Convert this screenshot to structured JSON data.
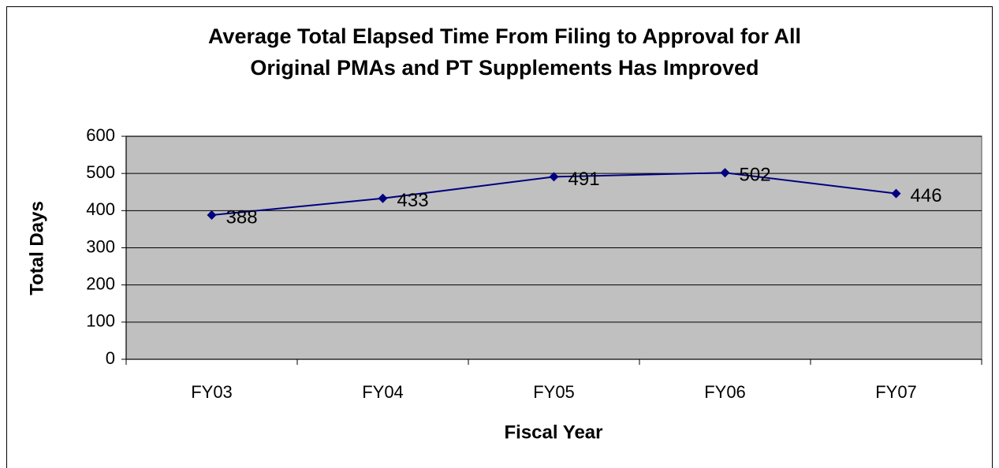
{
  "chart_data": {
    "type": "line",
    "title": [
      "Average Total Elapsed Time From Filing to Approval for All",
      "Original PMAs and PT Supplements Has Improved"
    ],
    "x_label": "Fiscal Year",
    "y_label": "Total Days",
    "categories": [
      "FY03",
      "FY04",
      "FY05",
      "FY06",
      "FY07"
    ],
    "series": [
      {
        "name": "Total Days",
        "color": "#000080",
        "values": [
          388,
          433,
          491,
          502,
          446
        ]
      }
    ],
    "ylim": [
      0,
      600
    ],
    "yticks": [
      0,
      100,
      200,
      300,
      400,
      500,
      600
    ],
    "grid": true,
    "plot_background": "#c0c0c0"
  }
}
